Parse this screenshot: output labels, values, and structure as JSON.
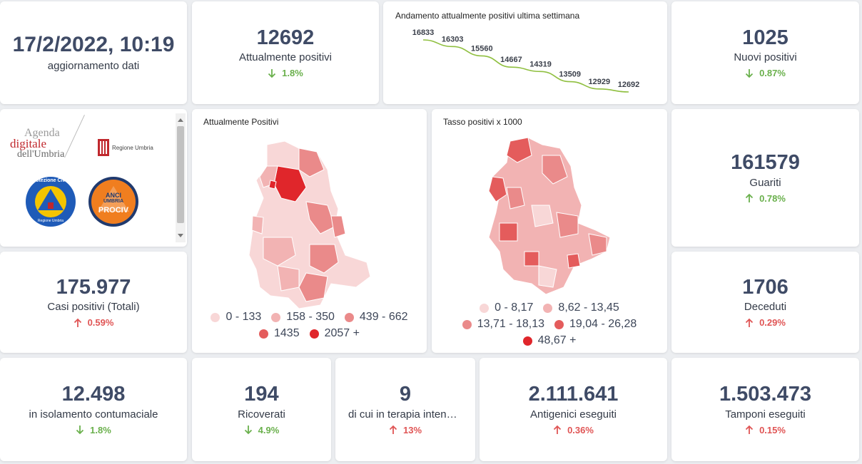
{
  "updated": {
    "datetime": "17/2/2022, 10:19",
    "label": "aggiornamento dati"
  },
  "attualmente_positivi": {
    "value": "12692",
    "label": "Attualmente positivi",
    "delta": "1.8%",
    "direction": "down"
  },
  "trend": {
    "title": "Andamento attualmente positivi ultima settimana",
    "chart_data": {
      "type": "line",
      "values": [
        16833,
        16303,
        15560,
        14667,
        14319,
        13509,
        12929,
        12692
      ],
      "labels": [
        "16833",
        "16303",
        "15560",
        "14667",
        "14319",
        "13509",
        "12929",
        "12692"
      ],
      "color": "#8fbf3f"
    }
  },
  "nuovi_positivi": {
    "value": "1025",
    "label": "Nuovi positivi",
    "delta": "0.87%",
    "direction": "down"
  },
  "logos": {
    "agenda_line1": "Agenda",
    "agenda_line2": "digitale",
    "agenda_line3": "dell'Umbria",
    "regione": "Regione Umbria",
    "protezione": "Protezione Civile",
    "protezione_sub": "Regione Umbria",
    "anci_line1": "ANCI",
    "anci_line2": "UMBRIA",
    "anci_line3": "PROCIV"
  },
  "map_positivi": {
    "title": "Attualmente Positivi",
    "legend": [
      {
        "label": "0 - 133",
        "color": "#f8d7d7"
      },
      {
        "label": "158 - 350",
        "color": "#f2b3b3"
      },
      {
        "label": "439 - 662",
        "color": "#ea8a8a"
      },
      {
        "label": "1435",
        "color": "#e45c5c"
      },
      {
        "label": "2057 +",
        "color": "#e0262b"
      }
    ]
  },
  "map_tasso": {
    "title": "Tasso positivi x 1000",
    "legend": [
      {
        "label": "0 - 8,17",
        "color": "#f8d7d7"
      },
      {
        "label": "8,62 - 13,45",
        "color": "#f2b3b3"
      },
      {
        "label": "13,71 - 18,13",
        "color": "#ea8a8a"
      },
      {
        "label": "19,04 - 26,28",
        "color": "#e45c5c"
      },
      {
        "label": "48,67 +",
        "color": "#e0262b"
      }
    ]
  },
  "guariti": {
    "value": "161579",
    "label": "Guariti",
    "delta": "0.78%",
    "direction": "up_green"
  },
  "casi_totali": {
    "value": "175.977",
    "label": "Casi positivi (Totali)",
    "delta": "0.59%",
    "direction": "up"
  },
  "deceduti": {
    "value": "1706",
    "label": "Deceduti",
    "delta": "0.29%",
    "direction": "up"
  },
  "isolamento": {
    "value": "12.498",
    "label": "in isolamento contumaciale",
    "delta": "1.8%",
    "direction": "down"
  },
  "ricoverati": {
    "value": "194",
    "label": "Ricoverati",
    "delta": "4.9%",
    "direction": "down"
  },
  "terapia": {
    "value": "9",
    "label": "di cui in terapia intensiva",
    "delta": "13%",
    "direction": "up"
  },
  "antigenici": {
    "value": "2.111.641",
    "label": "Antigenici eseguiti",
    "delta": "0.36%",
    "direction": "up"
  },
  "tamponi": {
    "value": "1.503.473",
    "label": "Tamponi eseguiti",
    "delta": "0.15%",
    "direction": "up"
  }
}
